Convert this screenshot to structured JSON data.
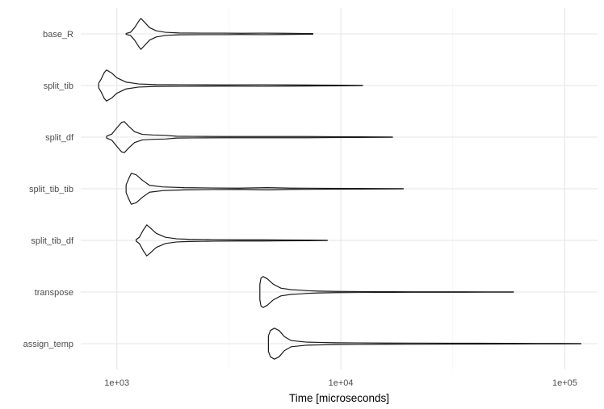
{
  "chart_data": {
    "type": "violin",
    "title": "",
    "xlabel": "Time [microseconds]",
    "ylabel": "",
    "x_scale": "log10",
    "xlim": [
      690,
      140000
    ],
    "x_ticks": [
      1000,
      10000,
      100000
    ],
    "x_tick_labels": [
      "1e+03",
      "1e+04",
      "1e+05"
    ],
    "x_minor_ticks": [
      3162.28,
      31622.78
    ],
    "grid": true,
    "legend": "none",
    "categories": [
      "base_R",
      "split_tib",
      "split_df",
      "split_tib_tib",
      "split_tib_df",
      "transpose",
      "assign_temp"
    ],
    "series": [
      {
        "category": "base_R",
        "min": 1100,
        "max": 7500,
        "profile": [
          [
            1100,
            0.03
          ],
          [
            1150,
            0.1
          ],
          [
            1200,
            0.4
          ],
          [
            1250,
            0.8
          ],
          [
            1280,
            1.0
          ],
          [
            1330,
            0.75
          ],
          [
            1400,
            0.4
          ],
          [
            1500,
            0.2
          ],
          [
            1650,
            0.1
          ],
          [
            1900,
            0.06
          ],
          [
            2400,
            0.05
          ],
          [
            3000,
            0.05
          ],
          [
            3600,
            0.04
          ],
          [
            4500,
            0.05
          ],
          [
            5500,
            0.04
          ],
          [
            6500,
            0.03
          ],
          [
            7500,
            0.02
          ]
        ]
      },
      {
        "category": "split_tib",
        "min": 830,
        "max": 12500,
        "profile": [
          [
            830,
            0.15
          ],
          [
            850,
            0.4
          ],
          [
            880,
            0.85
          ],
          [
            900,
            1.0
          ],
          [
            950,
            0.8
          ],
          [
            1000,
            0.5
          ],
          [
            1100,
            0.22
          ],
          [
            1250,
            0.1
          ],
          [
            1500,
            0.06
          ],
          [
            2000,
            0.05
          ],
          [
            3000,
            0.04
          ],
          [
            4500,
            0.05
          ],
          [
            6000,
            0.04
          ],
          [
            8000,
            0.03
          ],
          [
            10000,
            0.02
          ],
          [
            12500,
            0.01
          ]
        ]
      },
      {
        "category": "split_df",
        "min": 900,
        "max": 17000,
        "profile": [
          [
            900,
            0.06
          ],
          [
            950,
            0.2
          ],
          [
            1000,
            0.6
          ],
          [
            1050,
            0.95
          ],
          [
            1080,
            1.0
          ],
          [
            1130,
            0.7
          ],
          [
            1200,
            0.35
          ],
          [
            1300,
            0.18
          ],
          [
            1450,
            0.14
          ],
          [
            1650,
            0.12
          ],
          [
            1850,
            0.06
          ],
          [
            2200,
            0.05
          ],
          [
            3000,
            0.04
          ],
          [
            4500,
            0.04
          ],
          [
            6500,
            0.04
          ],
          [
            9000,
            0.03
          ],
          [
            12000,
            0.02
          ],
          [
            17000,
            0.01
          ]
        ]
      },
      {
        "category": "split_tib_tib",
        "min": 1100,
        "max": 19000,
        "profile": [
          [
            1100,
            0.25
          ],
          [
            1130,
            0.65
          ],
          [
            1160,
            1.0
          ],
          [
            1220,
            0.9
          ],
          [
            1300,
            0.55
          ],
          [
            1400,
            0.22
          ],
          [
            1600,
            0.12
          ],
          [
            2000,
            0.07
          ],
          [
            2700,
            0.05
          ],
          [
            3500,
            0.04
          ],
          [
            4700,
            0.07
          ],
          [
            6000,
            0.04
          ],
          [
            8500,
            0.03
          ],
          [
            12000,
            0.02
          ],
          [
            15000,
            0.015
          ],
          [
            19000,
            0.01
          ]
        ]
      },
      {
        "category": "split_tib_df",
        "min": 1220,
        "max": 8700,
        "profile": [
          [
            1220,
            0.05
          ],
          [
            1260,
            0.2
          ],
          [
            1310,
            0.65
          ],
          [
            1360,
            1.0
          ],
          [
            1400,
            0.85
          ],
          [
            1500,
            0.45
          ],
          [
            1650,
            0.2
          ],
          [
            1850,
            0.1
          ],
          [
            2100,
            0.07
          ],
          [
            2700,
            0.05
          ],
          [
            3500,
            0.04
          ],
          [
            4500,
            0.04
          ],
          [
            5500,
            0.03
          ],
          [
            7000,
            0.02
          ],
          [
            8700,
            0.01
          ]
        ]
      },
      {
        "category": "transpose",
        "min": 4350,
        "max": 59000,
        "profile": [
          [
            4350,
            0.5
          ],
          [
            4400,
            0.9
          ],
          [
            4500,
            1.0
          ],
          [
            4700,
            0.85
          ],
          [
            5000,
            0.5
          ],
          [
            5400,
            0.25
          ],
          [
            6000,
            0.15
          ],
          [
            6600,
            0.12
          ],
          [
            7200,
            0.08
          ],
          [
            8000,
            0.06
          ],
          [
            9500,
            0.04
          ],
          [
            12000,
            0.03
          ],
          [
            17000,
            0.02
          ],
          [
            25000,
            0.015
          ],
          [
            35000,
            0.012
          ],
          [
            45000,
            0.01
          ],
          [
            59000,
            0.008
          ]
        ]
      },
      {
        "category": "assign_temp",
        "min": 4750,
        "max": 118000,
        "profile": [
          [
            4750,
            0.5
          ],
          [
            4850,
            0.85
          ],
          [
            5050,
            1.0
          ],
          [
            5300,
            0.85
          ],
          [
            5600,
            0.45
          ],
          [
            6000,
            0.2
          ],
          [
            7000,
            0.1
          ],
          [
            8000,
            0.08
          ],
          [
            9500,
            0.06
          ],
          [
            12000,
            0.05
          ],
          [
            16000,
            0.04
          ],
          [
            22000,
            0.035
          ],
          [
            30000,
            0.03
          ],
          [
            40000,
            0.025
          ],
          [
            55000,
            0.02
          ],
          [
            75000,
            0.015
          ],
          [
            95000,
            0.012
          ],
          [
            118000,
            0.008
          ]
        ]
      }
    ]
  }
}
